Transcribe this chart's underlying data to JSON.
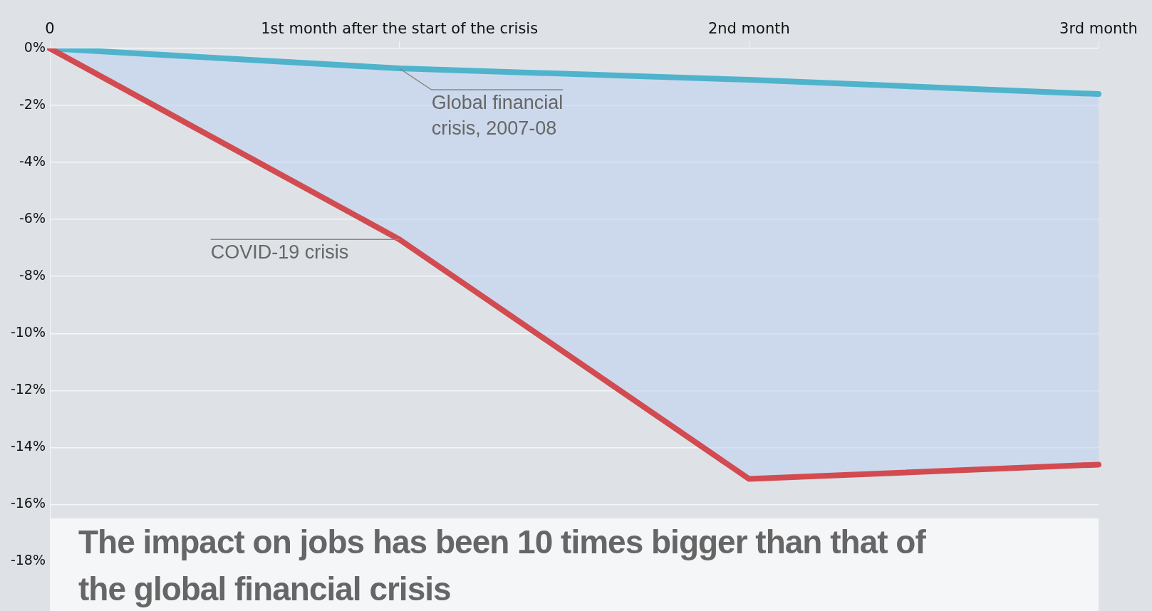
{
  "chart_data": {
    "type": "line",
    "title": "The impact on jobs has been 10 times bigger than that of the global financial crisis",
    "categories": [
      "0",
      "1st month after the start of the crisis",
      "2nd month",
      "3rd month"
    ],
    "series": [
      {
        "name": "Global financial crisis, 2007-08",
        "color": "#4fb3cc",
        "values": [
          0,
          -0.7,
          -1.1,
          -1.6
        ],
        "lower": [
          0,
          -6.7,
          -15.1,
          -14.6
        ],
        "upper": [
          0,
          -0.7,
          -1.1,
          -1.6
        ]
      },
      {
        "name": "COVID-19 crisis",
        "color": "#d24b50",
        "values": [
          0,
          -6.7,
          -15.1,
          -14.6
        ]
      }
    ],
    "ylim": [
      -19.3,
      0
    ],
    "yticks": [
      {
        "value": 0,
        "label": "0%"
      },
      {
        "value": -2,
        "label": "-2%"
      },
      {
        "value": -4,
        "label": "-4%"
      },
      {
        "value": -6,
        "label": "-6%"
      },
      {
        "value": -8,
        "label": "-8%"
      },
      {
        "value": -10,
        "label": "-10%"
      },
      {
        "value": -12,
        "label": "-12%"
      },
      {
        "value": -14,
        "label": "-14%"
      },
      {
        "value": -16,
        "label": "-16%"
      },
      {
        "value": -18,
        "label": "-18%"
      }
    ],
    "grid": "y",
    "legend": false,
    "marker": "none",
    "line_style": "solid"
  }
}
